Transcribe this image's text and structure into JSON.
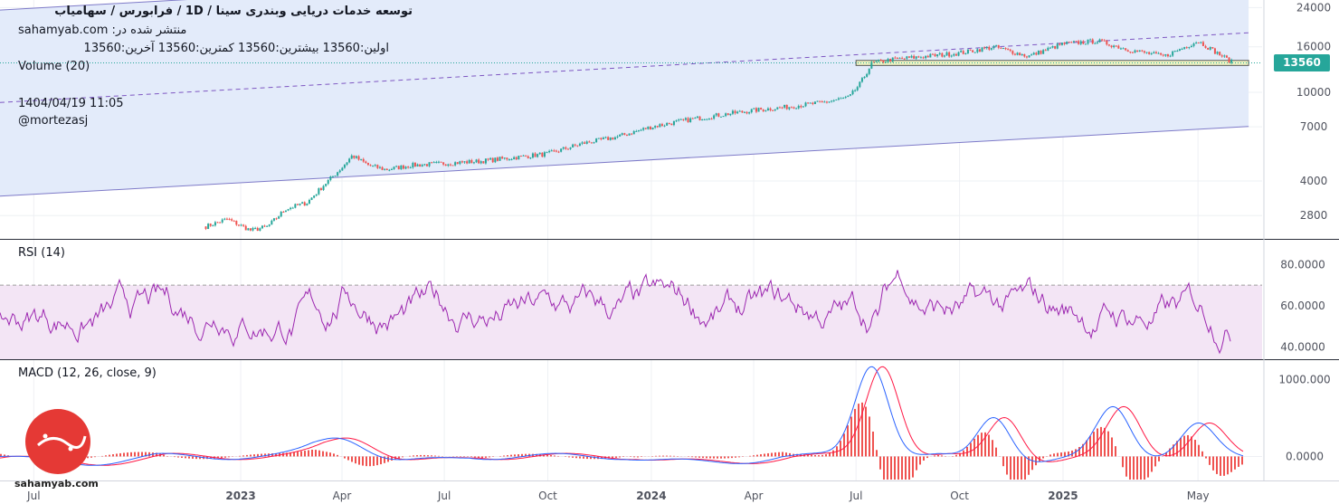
{
  "header": {
    "title": "توسعه خدمات دریایی وبندری سینا /  1D  /  فرابورس / سهامیاب",
    "published": "sahamyab.com :منتشر شده در",
    "ohlc": "اولین:13560  بیشترین:13560  کمترین:13560  آخرین:13560",
    "volume_label": "Volume (20)",
    "date": "1404/04/19 11:05",
    "author": "@mortezasj"
  },
  "price_tag": "13560",
  "brand": "sahamyab.com",
  "colors": {
    "up": "#26a69a",
    "down": "#ef5350",
    "channel_fill": "#e3ebfa",
    "channel_line": "#7e7ac8",
    "rsi_line": "#9c27b0",
    "rsi_fill": "#f3e5f5",
    "macd_line": "#2962ff",
    "signal_line": "#ff1744",
    "hist_pos": "#ef5350",
    "hist_neg": "#ef5350",
    "support_box": "#f0f4c3"
  },
  "chart_data": [
    {
      "type": "candlestick",
      "title": "توسعه خدمات دریایی وبندری سینا",
      "scale": "log",
      "y_ticks": [
        2800,
        4000,
        7000,
        10000,
        16000,
        24000
      ],
      "ylim": [
        2200,
        25000
      ],
      "x_ticks": [
        "Jul",
        "2023",
        "Apr",
        "Jul",
        "Oct",
        "2024",
        "Apr",
        "Jul",
        "Oct",
        "2025",
        "May"
      ],
      "last_price": 13560,
      "price_path": [
        [
          "2022-12-01",
          2500
        ],
        [
          "2022-12-20",
          2700
        ],
        [
          "2023-01-10",
          2400
        ],
        [
          "2023-01-25",
          2500
        ],
        [
          "2023-02-10",
          3000
        ],
        [
          "2023-03-01",
          3200
        ],
        [
          "2023-03-15",
          3800
        ],
        [
          "2023-04-01",
          4600
        ],
        [
          "2023-04-10",
          5200
        ],
        [
          "2023-04-25",
          4700
        ],
        [
          "2023-05-10",
          4500
        ],
        [
          "2023-06-01",
          4700
        ],
        [
          "2023-07-01",
          4800
        ],
        [
          "2023-08-01",
          4900
        ],
        [
          "2023-09-01",
          5100
        ],
        [
          "2023-10-01",
          5300
        ],
        [
          "2023-11-01",
          5900
        ],
        [
          "2023-12-01",
          6300
        ],
        [
          "2024-01-01",
          7000
        ],
        [
          "2024-02-01",
          7500
        ],
        [
          "2024-03-01",
          7900
        ],
        [
          "2024-04-01",
          8300
        ],
        [
          "2024-05-01",
          8600
        ],
        [
          "2024-06-01",
          9000
        ],
        [
          "2024-06-25",
          9500
        ],
        [
          "2024-07-05",
          11000
        ],
        [
          "2024-07-15",
          13500
        ],
        [
          "2024-08-01",
          14000
        ],
        [
          "2024-09-01",
          14500
        ],
        [
          "2024-10-01",
          15000
        ],
        [
          "2024-11-01",
          16000
        ],
        [
          "2024-12-01",
          14500
        ],
        [
          "2025-01-01",
          16500
        ],
        [
          "2025-02-01",
          17000
        ],
        [
          "2025-03-01",
          15500
        ],
        [
          "2025-04-01",
          14500
        ],
        [
          "2025-05-01",
          17000
        ],
        [
          "2025-06-01",
          13560
        ]
      ],
      "regression_channel": {
        "start": [
          "2022-06-01",
          9000
        ],
        "end": [
          "2025-06-15",
          18500
        ],
        "upper_factor": 2.6,
        "lower_factor": 0.38
      },
      "support_zone": {
        "from": "2024-07-01",
        "to": "2025-06-15",
        "low": 13200,
        "high": 13900
      }
    },
    {
      "type": "line",
      "title": "RSI (14)",
      "y_ticks": [
        40,
        60,
        80
      ],
      "ylim": [
        34,
        92
      ],
      "band": [
        30,
        70
      ]
    },
    {
      "type": "line",
      "title": "MACD (12, 26, close, 9)",
      "y_ticks": [
        0,
        1000
      ],
      "ylim": [
        -300,
        1250
      ],
      "series": [
        {
          "name": "MACD"
        },
        {
          "name": "Signal"
        },
        {
          "name": "Histogram"
        }
      ],
      "peaks": [
        [
          "2023-04-01",
          300
        ],
        [
          "2024-07-15",
          1200
        ],
        [
          "2024-11-01",
          600
        ],
        [
          "2025-02-15",
          650
        ],
        [
          "2025-05-01",
          400
        ]
      ]
    }
  ],
  "axis": {
    "y_labels": [
      "24000",
      "16000",
      "10000",
      "7000",
      "4000",
      "2800"
    ],
    "rsi_labels": [
      "80.0000",
      "60.0000",
      "40.0000"
    ],
    "macd_labels": [
      "1000.000",
      "0.0000"
    ]
  }
}
